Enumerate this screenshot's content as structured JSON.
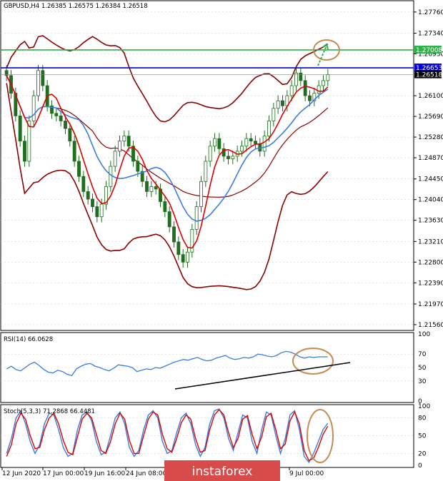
{
  "colors": {
    "background": "#ffffff",
    "grid": "#c8c8c8",
    "candle": "#1f6f1f",
    "bollinger": "#8b0000",
    "ma_fast": "#e00000",
    "ma_slow": "#3a7de0",
    "resistance_line": "#0000e0",
    "target_line": "#2db34a",
    "annotation": "#c68b52",
    "trendline": "#000000",
    "watermark": "#d84b4b"
  },
  "chart_data": [
    {
      "type": "candlestick",
      "header": "GBPUSD,H4  1.26385 1.26575 1.26384 1.26518",
      "y_ticks": [
        "1.27760",
        "1.27340",
        "1.26930",
        "1.26100",
        "1.25690",
        "1.25280",
        "1.24870",
        "1.24450",
        "1.24040",
        "1.23630",
        "1.23210",
        "1.22800",
        "1.22390",
        "1.21970",
        "1.21560"
      ],
      "ylim": [
        1.2146,
        1.2797
      ],
      "price_labels": [
        {
          "name": "target",
          "value": 1.27008,
          "text": "1.27008"
        },
        {
          "name": "resistance",
          "value": 1.26653,
          "text": "1.26653"
        },
        {
          "name": "current",
          "value": 1.26518,
          "text": "1.26518"
        }
      ],
      "x_labels": [
        "12 Jun 2020",
        "17 Jun 00:00",
        "19 Jun 16:00",
        "24 Jun 08:00",
        "9 Jul 00:00"
      ],
      "close": [
        1.265,
        1.2615,
        1.257,
        1.252,
        1.248,
        1.256,
        1.261,
        1.266,
        1.263,
        1.259,
        1.2575,
        1.257,
        1.256,
        1.2545,
        1.252,
        1.248,
        1.245,
        1.242,
        1.2405,
        1.239,
        1.237,
        1.2395,
        1.243,
        1.247,
        1.25,
        1.252,
        1.253,
        1.251,
        1.248,
        1.246,
        1.244,
        1.242,
        1.243,
        1.2425,
        1.24,
        1.238,
        1.235,
        1.232,
        1.2295,
        1.228,
        1.23,
        1.2345,
        1.239,
        1.244,
        1.248,
        1.251,
        1.2525,
        1.2505,
        1.249,
        1.2485,
        1.249,
        1.25,
        1.251,
        1.2525,
        1.252,
        1.2515,
        1.25,
        1.253,
        1.256,
        1.2585,
        1.26,
        1.259,
        1.261,
        1.263,
        1.2655,
        1.264,
        1.261,
        1.26,
        1.2615,
        1.263,
        1.264,
        1.2652
      ]
    },
    {
      "type": "line",
      "header": "RSI(14) 66.0628",
      "y_ticks": [
        "100",
        "70",
        "50",
        "30",
        "0"
      ],
      "ylim": [
        0,
        100
      ],
      "values": [
        48,
        52,
        47,
        45,
        50,
        55,
        58,
        53,
        47,
        43,
        42,
        46,
        44,
        40,
        38,
        48,
        52,
        55,
        56,
        52,
        50,
        47,
        45,
        49,
        54,
        53,
        52,
        50,
        44,
        46,
        48,
        47,
        50,
        49,
        52,
        55,
        58,
        60,
        62,
        61,
        63,
        65,
        62,
        60,
        61,
        64,
        66,
        68,
        64,
        62,
        63,
        65,
        64,
        66,
        70,
        69,
        67,
        66,
        68,
        72,
        74,
        73,
        70,
        66,
        64,
        66,
        65,
        66,
        66,
        66
      ]
    },
    {
      "type": "line",
      "header": "Stoch(5,3,3) 71.2868 66.4481",
      "y_ticks": [
        "100",
        "80",
        "50",
        "20",
        "0"
      ],
      "ylim": [
        0,
        100
      ],
      "series": [
        {
          "name": "main",
          "values": [
            20,
            45,
            80,
            92,
            70,
            40,
            20,
            35,
            70,
            88,
            85,
            60,
            30,
            15,
            20,
            60,
            85,
            90,
            75,
            40,
            18,
            22,
            50,
            80,
            90,
            70,
            30,
            15,
            25,
            60,
            85,
            92,
            80,
            40,
            20,
            25,
            55,
            80,
            88,
            70,
            35,
            15,
            30,
            70,
            92,
            95,
            80,
            45,
            25,
            55,
            85,
            80,
            40,
            20,
            60,
            90,
            85,
            50,
            20,
            45,
            85,
            92,
            60,
            15,
            5,
            20,
            40,
            60,
            71
          ]
        },
        {
          "name": "signal",
          "values": [
            15,
            35,
            70,
            88,
            78,
            50,
            28,
            30,
            60,
            80,
            88,
            70,
            42,
            22,
            18,
            48,
            78,
            88,
            80,
            52,
            25,
            20,
            40,
            70,
            88,
            78,
            42,
            20,
            20,
            50,
            78,
            90,
            85,
            52,
            28,
            22,
            45,
            72,
            85,
            78,
            45,
            22,
            25,
            60,
            85,
            94,
            85,
            55,
            30,
            45,
            78,
            84,
            52,
            28,
            48,
            82,
            88,
            60,
            28,
            36,
            75,
            90,
            70,
            25,
            8,
            12,
            30,
            52,
            66
          ]
        }
      ]
    }
  ],
  "watermark": {
    "text": "instaforex"
  }
}
